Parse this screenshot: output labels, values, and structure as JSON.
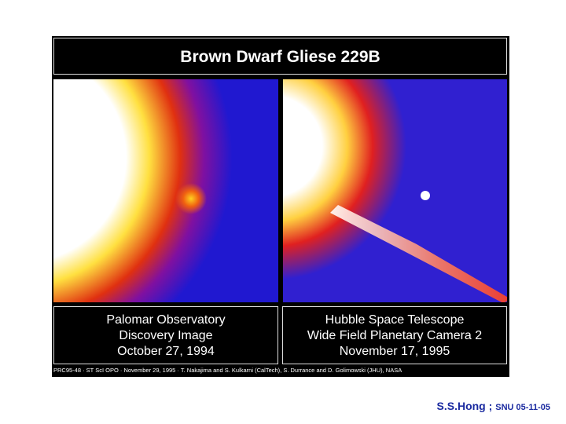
{
  "title": "Brown Dwarf Gliese 229B",
  "panels": [
    {
      "caption": [
        "Palomar Observatory",
        "Discovery Image",
        "October 27, 1994"
      ]
    },
    {
      "caption": [
        "Hubble Space Telescope",
        "Wide Field Planetary Camera 2",
        "November 17, 1995"
      ]
    }
  ],
  "credit": "PRC95-48 · ST ScI OPO · November 29, 1995 · T. Nakajima and S. Kulkarni (CalTech), S. Durrance and D. Golimowski (JHU), NASA",
  "footer": {
    "author": "S.S.Hong ;",
    "affiliation": "SNU 05-11-05"
  }
}
